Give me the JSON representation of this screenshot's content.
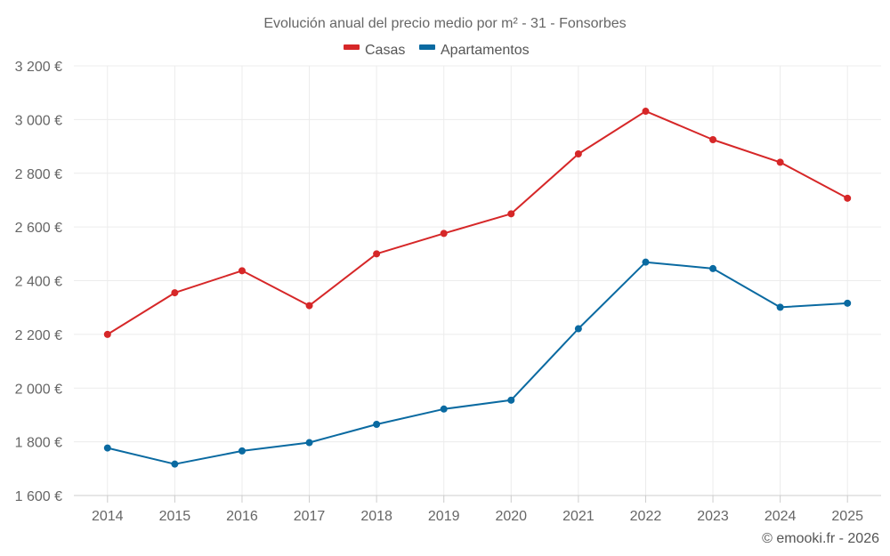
{
  "chart_data": {
    "type": "line",
    "title": "Evolución anual del precio medio por m² - 31 - Fonsorbes",
    "xlabel": "",
    "ylabel": "",
    "categories": [
      "2014",
      "2015",
      "2016",
      "2017",
      "2018",
      "2019",
      "2020",
      "2021",
      "2022",
      "2023",
      "2024",
      "2025"
    ],
    "ylim": [
      1600,
      3200
    ],
    "yticks": [
      1600,
      1800,
      2000,
      2200,
      2400,
      2600,
      2800,
      3000,
      3200
    ],
    "ytick_labels": [
      "1 600 €",
      "1 800 €",
      "2 000 €",
      "2 200 €",
      "2 400 €",
      "2 600 €",
      "2 800 €",
      "3 000 €",
      "3 200 €"
    ],
    "grid": true,
    "legend_position": "top-center",
    "series": [
      {
        "name": "Casas",
        "color": "#d62728",
        "values": [
          2200,
          2355,
          2437,
          2307,
          2500,
          2576,
          2649,
          2872,
          3031,
          2925,
          2841,
          2707
        ]
      },
      {
        "name": "Apartamentos",
        "color": "#0a6aa1",
        "values": [
          1777,
          1717,
          1766,
          1797,
          1865,
          1922,
          1955,
          2221,
          2469,
          2445,
          2301,
          2316
        ]
      }
    ],
    "credit": "© emooki.fr - 2026"
  }
}
